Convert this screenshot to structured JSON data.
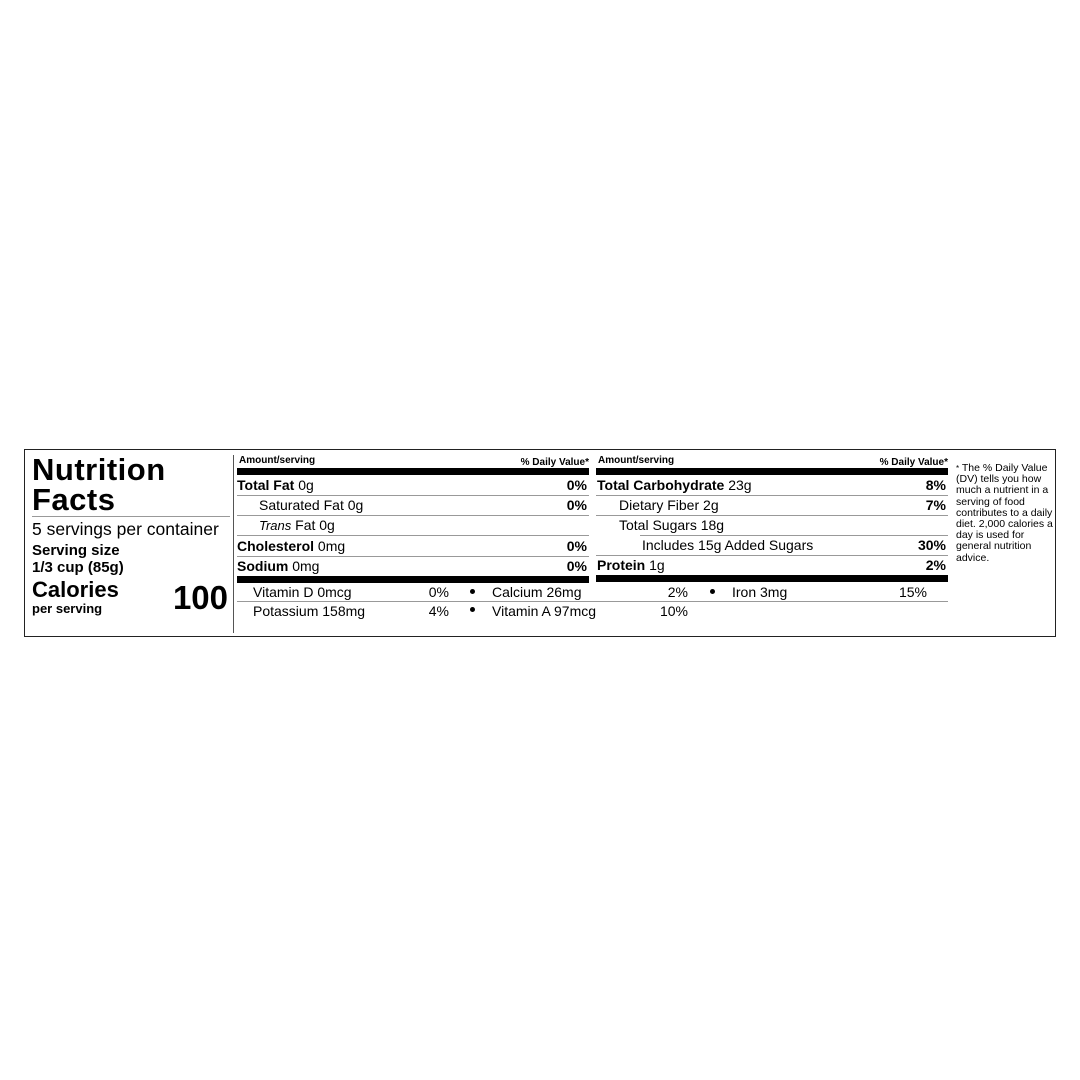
{
  "title_line1": "Nutrition",
  "title_line2": "Facts",
  "servings_per_container": "5 servings per container",
  "serving_size_label": "Serving size",
  "serving_size_value": "1/3 cup (85g)",
  "calories_label": "Calories",
  "calories_sublabel": "per serving",
  "calories_value": "100",
  "header": {
    "amount": "Amount/serving",
    "dv": "% Daily Value*"
  },
  "left_rows": [
    {
      "name": "Total Fat",
      "amount": "0g",
      "dv": "0%"
    },
    {
      "name": "Saturated Fat",
      "amount": "0g",
      "dv": "0%"
    },
    {
      "name": "Trans",
      "amount": "Fat 0g",
      "dv": ""
    },
    {
      "name": "Cholesterol",
      "amount": "0mg",
      "dv": "0%"
    },
    {
      "name": "Sodium",
      "amount": "0mg",
      "dv": "0%"
    }
  ],
  "right_rows": [
    {
      "name": "Total Carbohydrate",
      "amount": "23g",
      "dv": "8%"
    },
    {
      "name": "Dietary Fiber",
      "amount": "2g",
      "dv": "7%"
    },
    {
      "name": "Total Sugars",
      "amount": "18g",
      "dv": ""
    },
    {
      "name": "Includes 15g Added Sugars",
      "amount": "",
      "dv": "30%"
    },
    {
      "name": "Protein",
      "amount": "1g",
      "dv": "2%"
    }
  ],
  "vitamins": [
    {
      "label": "Vitamin D 0mcg",
      "dv": "0%"
    },
    {
      "label": "Calcium 26mg",
      "dv": "2%"
    },
    {
      "label": "Iron 3mg",
      "dv": "15%"
    },
    {
      "label": "Potassium 158mg",
      "dv": "4%"
    },
    {
      "label": "Vitamin A 97mcg",
      "dv": "10%"
    }
  ],
  "footnote_mark": "*",
  "footnote": "The % Daily Value (DV) tells you how much a nutrient in a serving of food contributes to a daily diet. 2,000 calories a day is used for general nutrition advice."
}
